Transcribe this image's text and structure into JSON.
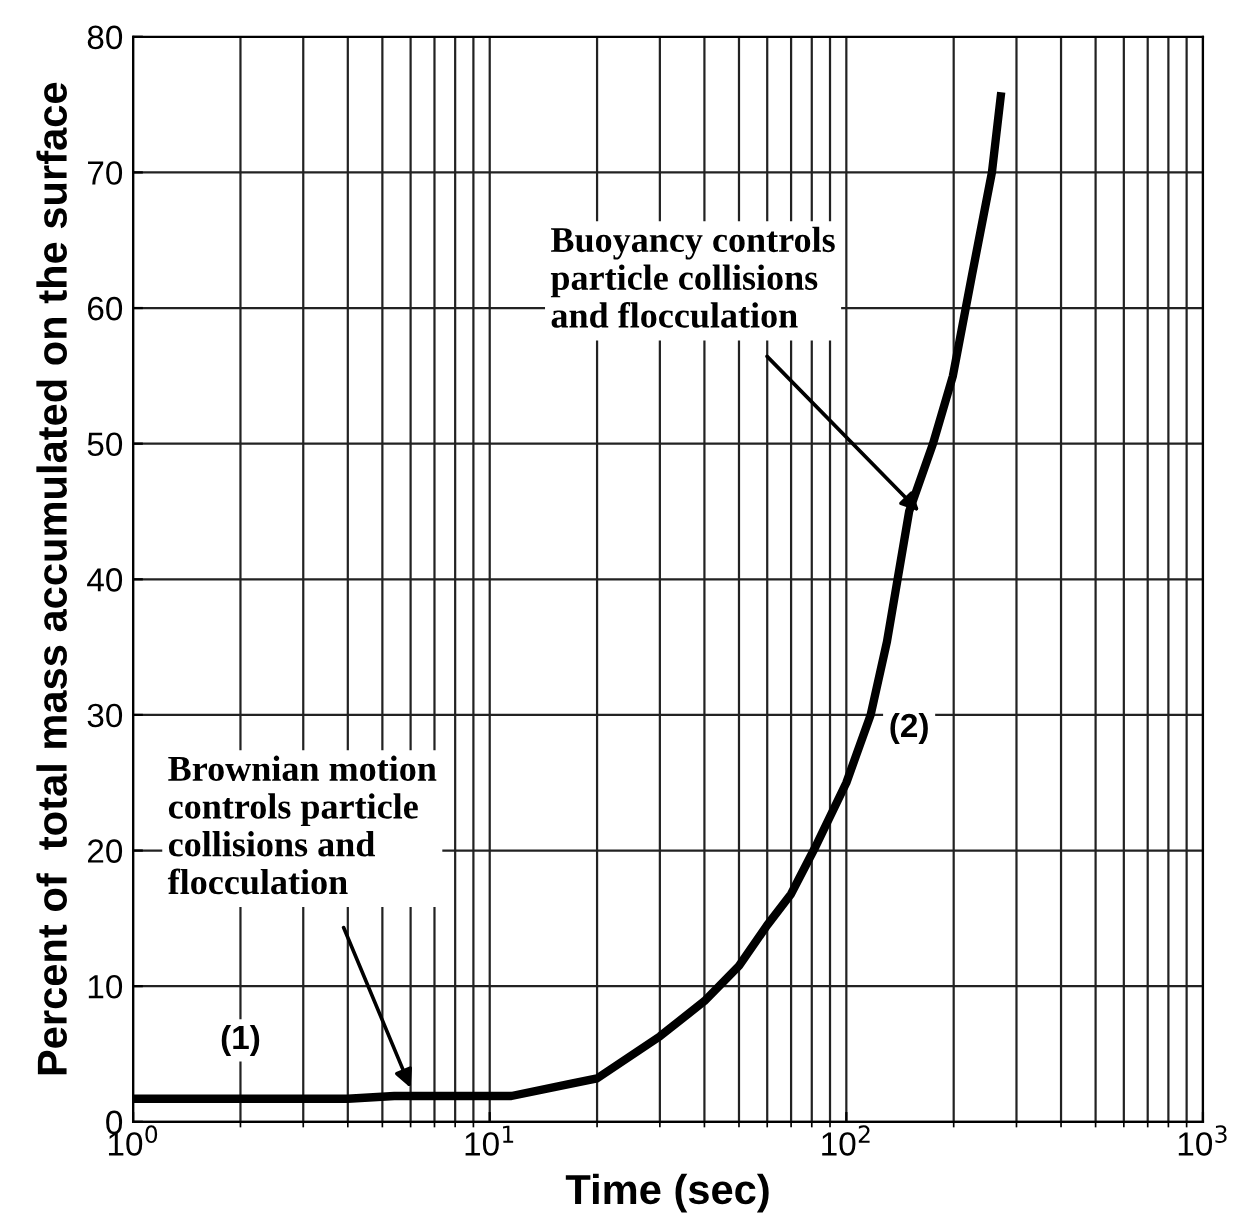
{
  "chart_data": {
    "type": "line",
    "xlabel": "Time (sec)",
    "ylabel": "Percent of  total mass accumulated on the surface",
    "log": "x",
    "xlim": [
      1,
      1000
    ],
    "ylim": [
      0,
      80
    ],
    "xticks": [
      {
        "value": 1,
        "label": "10$^{0}$"
      },
      {
        "value": 10,
        "label": "10$^{1}$"
      },
      {
        "value": 100,
        "label": "10$^{2}$"
      },
      {
        "value": 1000,
        "label": "10$^{3}$"
      }
    ],
    "yticks": [
      0,
      10,
      20,
      30,
      40,
      50,
      60,
      70,
      80
    ],
    "grid": true,
    "line_style": "solid",
    "marker": "none",
    "series": [
      {
        "color": "#000000",
        "x": [
          1,
          2,
          4,
          5.4,
          11.5,
          16.8,
          20,
          30,
          40,
          50,
          60,
          70,
          82,
          100,
          117,
          130,
          150,
          175,
          199,
          225,
          256,
          271
        ],
        "values": [
          1.7,
          1.7,
          1.7,
          1.9,
          1.9,
          2.8,
          3.2,
          6.3,
          8.9,
          11.5,
          14.5,
          16.8,
          20.3,
          25,
          30,
          35.4,
          45,
          50,
          55,
          62.4,
          70,
          75.6
        ]
      }
    ],
    "annotations": [
      {
        "text": "Buoyancy controls\nparticle collisions\nand flocculation",
        "x": 160,
        "y": 45
      },
      {
        "text": "Brownian motion\ncontrols particle\ncollisions and\nflocculation",
        "x": 6,
        "y": 2.5
      },
      {
        "text": "(1)",
        "x": 2,
        "y": 6
      },
      {
        "text": "(2)",
        "x": 150,
        "y": 29
      }
    ]
  }
}
